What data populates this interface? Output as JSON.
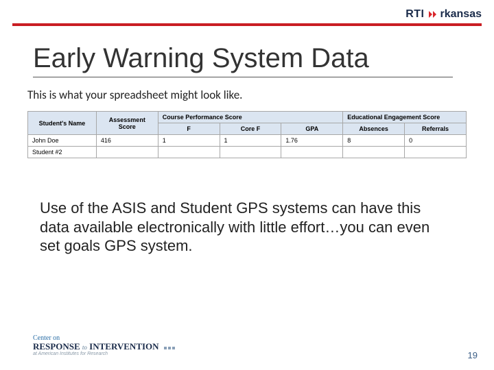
{
  "brand": {
    "rti": "RTI",
    "state": "rkansas"
  },
  "title": "Early Warning System Data",
  "subtitle": "This is what your spreadsheet might look like.",
  "table": {
    "headers": {
      "name": "Student's Name",
      "assessment": "Assessment Score",
      "course_group": "Course Performance Score",
      "engagement_group": "Educational Engagement Score",
      "f": "F",
      "coref": "Core F",
      "gpa": "GPA",
      "absences": "Absences",
      "referrals": "Referrals"
    },
    "rows": [
      {
        "name": "John Doe",
        "assessment": "416",
        "f": "1",
        "coref": "1",
        "gpa": "1.76",
        "absences": "8",
        "referrals": "0"
      },
      {
        "name": "Student #2",
        "assessment": "",
        "f": "",
        "coref": "",
        "gpa": "",
        "absences": "",
        "referrals": ""
      }
    ]
  },
  "body": "Use of the ASIS and Student GPS systems can have this data available electronically with little effort…you can even set goals GPS system.",
  "footer": {
    "line1": "Center on",
    "line2a": "RESPONSE",
    "line2b": "to",
    "line2c": "INTERVENTION",
    "line3": "at American Institutes for Research"
  },
  "page": "19",
  "colors": {
    "accent_red": "#c91e23",
    "header_bg": "#dbe5f1",
    "brand_navy": "#1a2b4a",
    "footer_blue": "#2a6ea6"
  }
}
